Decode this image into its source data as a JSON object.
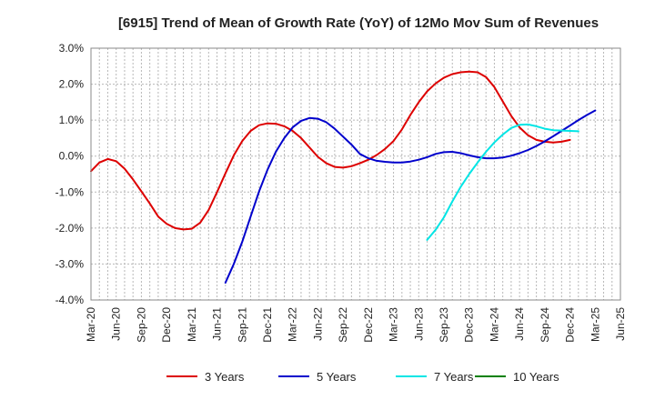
{
  "chart_data": {
    "type": "line",
    "title": "[6915]  Trend of Mean of Growth Rate (YoY) of 12Mo Mov Sum of Revenues",
    "xlabel": "",
    "ylabel": "",
    "ylim": [
      -4.0,
      3.0
    ],
    "y_ticks": [
      3.0,
      2.0,
      1.0,
      0.0,
      -1.0,
      -2.0,
      -3.0,
      -4.0
    ],
    "y_tick_labels": [
      "3.0%",
      "2.0%",
      "1.0%",
      "0.0%",
      "-1.0%",
      "-2.0%",
      "-3.0%",
      "-4.0%"
    ],
    "x_start": "Mar-20",
    "x_months_total": 63,
    "x_tick_labels": [
      "Mar-20",
      "Jun-20",
      "Sep-20",
      "Dec-20",
      "Mar-21",
      "Jun-21",
      "Sep-21",
      "Dec-21",
      "Mar-22",
      "Jun-22",
      "Sep-22",
      "Dec-22",
      "Mar-23",
      "Jun-23",
      "Sep-23",
      "Dec-23",
      "Mar-24",
      "Jun-24",
      "Sep-24",
      "Dec-24",
      "Mar-25",
      "Jun-25"
    ],
    "grid": true,
    "legend_position": "bottom",
    "series": [
      {
        "name": "3 Years",
        "color": "#dd0000",
        "start_month": 0,
        "values": [
          -0.42,
          -0.18,
          -0.08,
          -0.14,
          -0.35,
          -0.65,
          -0.98,
          -1.32,
          -1.68,
          -1.88,
          -2.0,
          -2.04,
          -2.02,
          -1.85,
          -1.5,
          -1.0,
          -0.48,
          0.02,
          0.42,
          0.7,
          0.86,
          0.91,
          0.9,
          0.83,
          0.7,
          0.5,
          0.24,
          -0.02,
          -0.2,
          -0.3,
          -0.32,
          -0.28,
          -0.2,
          -0.1,
          0.03,
          0.2,
          0.42,
          0.74,
          1.14,
          1.5,
          1.8,
          2.02,
          2.18,
          2.28,
          2.33,
          2.35,
          2.33,
          2.2,
          1.92,
          1.52,
          1.12,
          0.8,
          0.58,
          0.45,
          0.4,
          0.38,
          0.4,
          0.45
        ]
      },
      {
        "name": "5 Years",
        "color": "#0000cc",
        "start_month": 16,
        "values": [
          -3.52,
          -3.0,
          -2.38,
          -1.68,
          -0.98,
          -0.38,
          0.12,
          0.5,
          0.8,
          0.98,
          1.06,
          1.04,
          0.94,
          0.76,
          0.54,
          0.32,
          0.06,
          -0.06,
          -0.13,
          -0.16,
          -0.18,
          -0.18,
          -0.15,
          -0.1,
          -0.03,
          0.06,
          0.11,
          0.12,
          0.08,
          0.02,
          -0.03,
          -0.06,
          -0.06,
          -0.04,
          0.01,
          0.08,
          0.17,
          0.28,
          0.41,
          0.55,
          0.7,
          0.85,
          1.0,
          1.14,
          1.27
        ]
      },
      {
        "name": "7 Years",
        "color": "#00e5e5",
        "start_month": 40,
        "values": [
          -2.33,
          -2.05,
          -1.7,
          -1.26,
          -0.85,
          -0.5,
          -0.18,
          0.12,
          0.38,
          0.6,
          0.78,
          0.87,
          0.88,
          0.83,
          0.76,
          0.72,
          0.71,
          0.7,
          0.69
        ]
      },
      {
        "name": "10 Years",
        "color": "#008000",
        "start_month": 0,
        "values": []
      }
    ]
  }
}
